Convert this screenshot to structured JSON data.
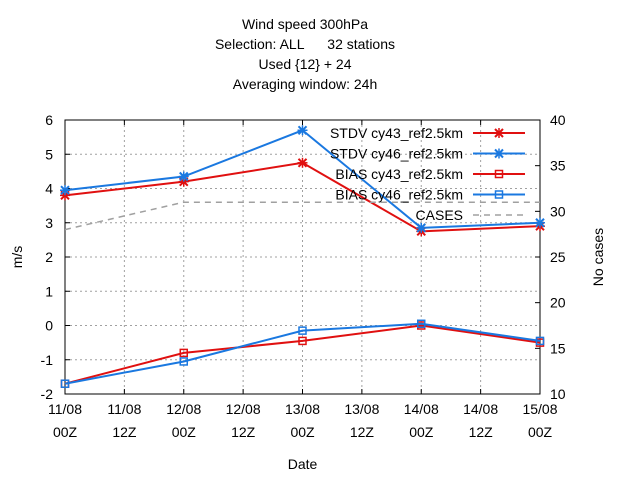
{
  "title_lines": [
    "Wind speed 300hPa",
    "Selection: ALL      32 stations",
    "Used {12} + 24",
    "Averaging window: 24h"
  ],
  "colors": {
    "red": "#e01010",
    "blue": "#1a78e0",
    "grey": "#a0a0a0",
    "grid": "#a0a0a0"
  },
  "chart_data": {
    "type": "line",
    "title": "Wind speed 300hPa",
    "xlabel": "Date",
    "ylabel": "m/s",
    "y2label": "No cases",
    "x_ticks": [
      "11/08\n00Z",
      "11/08\n12Z",
      "12/08\n00Z",
      "12/08\n12Z",
      "13/08\n00Z",
      "13/08\n12Z",
      "14/08\n00Z",
      "14/08\n12Z",
      "15/08\n00Z"
    ],
    "ylim": [
      -2,
      6
    ],
    "y_ticks": [
      "-2",
      "-1",
      "0",
      "1",
      "2",
      "3",
      "4",
      "5",
      "6"
    ],
    "y2lim": [
      10,
      40
    ],
    "y2_ticks": [
      "10",
      "15",
      "20",
      "25",
      "30",
      "35",
      "40"
    ],
    "grid": true,
    "legend_position": "top-right",
    "series": [
      {
        "name": "STDV cy43_ref2.5km",
        "axis": "y",
        "color": "red",
        "marker": "x",
        "x": [
          0,
          2,
          4,
          6,
          8
        ],
        "values": [
          3.8,
          4.2,
          4.75,
          2.75,
          2.9
        ]
      },
      {
        "name": "STDV cy46_ref2.5km",
        "axis": "y",
        "color": "blue",
        "marker": "x",
        "x": [
          0,
          2,
          4,
          6,
          8
        ],
        "values": [
          3.95,
          4.35,
          5.7,
          2.85,
          3.0
        ]
      },
      {
        "name": "BIAS cy43_ref2.5km",
        "axis": "y",
        "color": "red",
        "marker": "square",
        "x": [
          0,
          2,
          4,
          6,
          8
        ],
        "values": [
          -1.7,
          -0.8,
          -0.45,
          0.0,
          -0.5
        ]
      },
      {
        "name": "BIAS cy46_ref2.5km",
        "axis": "y",
        "color": "blue",
        "marker": "square",
        "x": [
          0,
          2,
          4,
          6,
          8
        ],
        "values": [
          -1.7,
          -1.05,
          -0.15,
          0.05,
          -0.45
        ]
      },
      {
        "name": "CASES",
        "axis": "y2",
        "color": "grey",
        "marker": "none",
        "dashed": true,
        "x": [
          0,
          2,
          4,
          6,
          8
        ],
        "values": [
          28,
          31,
          31,
          31,
          31
        ]
      }
    ]
  }
}
